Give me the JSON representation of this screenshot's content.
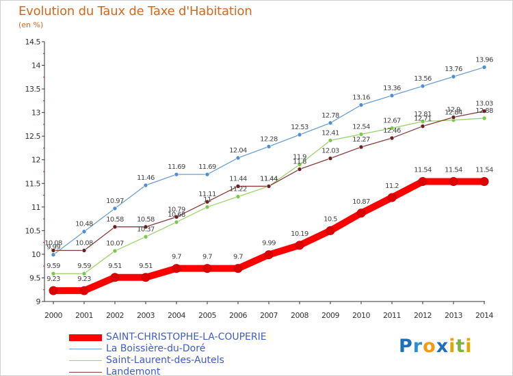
{
  "header": {
    "title": "Evolution du Taux de Taxe d'Habitation",
    "subtitle": "(en %)"
  },
  "brand": {
    "letters": [
      {
        "ch": "P",
        "color": "#1f6fb8"
      },
      {
        "ch": "r",
        "color": "#2e8fd0"
      },
      {
        "ch": "o",
        "color": "#f39c12"
      },
      {
        "ch": "x",
        "color": "#1f6fb8"
      },
      {
        "ch": "i",
        "color": "#e0a800"
      },
      {
        "ch": "t",
        "color": "#7cb342"
      },
      {
        "ch": "i",
        "color": "#e0a800"
      }
    ]
  },
  "chart_data": {
    "type": "line",
    "title": "Evolution du Taux de Taxe d'Habitation",
    "ylabel": "(en %)",
    "xlabel": "",
    "x": [
      "2000",
      "2001",
      "2002",
      "2003",
      "2004",
      "2005",
      "2006",
      "2007",
      "2008",
      "2009",
      "2010",
      "2011",
      "2012",
      "2013",
      "2014"
    ],
    "ylim": [
      9,
      14.5
    ],
    "yticks": [
      "9",
      "9.5",
      "10",
      "10.5",
      "11",
      "11.5",
      "12",
      "12.5",
      "13",
      "13.5",
      "14",
      "14.5"
    ],
    "grid": false,
    "legend_position": "bottom-left",
    "series": [
      {
        "name": "SAINT-CHRISTOPHE-LA-COUPERIE",
        "color": "#ff0000",
        "marker_color": "#dd0000",
        "thick": true,
        "values": [
          9.23,
          9.23,
          9.51,
          9.51,
          9.7,
          9.7,
          9.7,
          9.99,
          10.19,
          10.5,
          10.87,
          11.2,
          11.54,
          11.54,
          11.54
        ],
        "labels": [
          "9.23",
          "9.23",
          "9.51",
          "9.51",
          "9.7",
          "9.7",
          "9.7",
          "9.99",
          "10.19",
          "10.5",
          "10.87",
          "11.2",
          "11.54",
          "11.54",
          "11.54"
        ]
      },
      {
        "name": "La Boissière-du-Doré",
        "color": "#6a9fd4",
        "marker_color": "#4f8fd0",
        "thick": false,
        "values": [
          9.99,
          10.48,
          10.97,
          11.46,
          11.69,
          11.69,
          12.04,
          12.28,
          12.53,
          12.78,
          13.16,
          13.36,
          13.56,
          13.76,
          13.96
        ],
        "labels": [
          "9.99",
          "10.48",
          "10.97",
          "11.46",
          "11.69",
          "11.69",
          "12.04",
          "12.28",
          "12.53",
          "12.78",
          "13.16",
          "13.36",
          "13.56",
          "13.76",
          "13.96"
        ]
      },
      {
        "name": "Saint-Laurent-des-Autels",
        "color": "#9ad468",
        "marker_color": "#7cc94a",
        "thick": false,
        "values": [
          9.59,
          9.59,
          10.07,
          10.37,
          10.68,
          11.0,
          11.22,
          11.44,
          11.9,
          12.41,
          12.54,
          12.67,
          12.81,
          12.84,
          12.88
        ],
        "labels": [
          "9.59",
          "9.59",
          "10.07",
          "10.37",
          "10.68",
          "11",
          "11.22",
          "11.44",
          "11.9",
          "12.41",
          "12.54",
          "12.67",
          "12.81",
          "12.84",
          "12.88"
        ]
      },
      {
        "name": "Landemont",
        "color": "#8b3a3a",
        "marker_color": "#6b1f1f",
        "thick": false,
        "values": [
          10.08,
          10.08,
          10.58,
          10.58,
          10.79,
          11.11,
          11.44,
          11.44,
          11.8,
          12.03,
          12.27,
          12.46,
          12.71,
          12.9,
          13.03
        ],
        "labels": [
          "10.08",
          "10.08",
          "10.58",
          "10.58",
          "10.79",
          "11.11",
          "11.44",
          "11.44",
          "11.8",
          "12.03",
          "12.27",
          "12.46",
          "12.71",
          "12.9",
          "13.03"
        ]
      }
    ]
  }
}
